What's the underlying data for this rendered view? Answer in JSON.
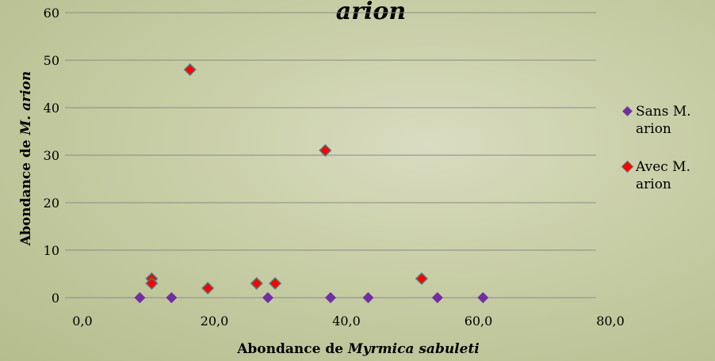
{
  "chart_data": {
    "type": "scatter",
    "title": "arion",
    "xlabel": {
      "text": "Abondance de ",
      "italic": "Myrmica sabuleti"
    },
    "ylabel": {
      "text": "Abondance de ",
      "italic": "M. arion"
    },
    "xlim": [
      0,
      80
    ],
    "xticks": [
      {
        "value": 0,
        "label": "0,0"
      },
      {
        "value": 20,
        "label": "20,0"
      },
      {
        "value": 40,
        "label": "40,0"
      },
      {
        "value": 60,
        "label": "60,0"
      },
      {
        "value": 80,
        "label": "80,0"
      }
    ],
    "ylim": [
      0,
      60
    ],
    "yticks": [
      0,
      10,
      20,
      30,
      40,
      50,
      60
    ],
    "grid": true,
    "legend": "right",
    "series": [
      {
        "name": "Sans M. arion",
        "color": "#7030a0",
        "x": [
          8.7,
          13.5,
          28.1,
          37.6,
          43.3,
          53.8,
          60.7
        ],
        "values": [
          0,
          0,
          0,
          0,
          0,
          0,
          0
        ]
      },
      {
        "name": "Avec M. arion",
        "color": "#ff0000",
        "x": [
          10.5,
          10.5,
          16.3,
          19,
          26.4,
          29.2,
          36.8,
          51.4
        ],
        "values": [
          4,
          3,
          48,
          2,
          3,
          3,
          31,
          4
        ]
      }
    ]
  }
}
